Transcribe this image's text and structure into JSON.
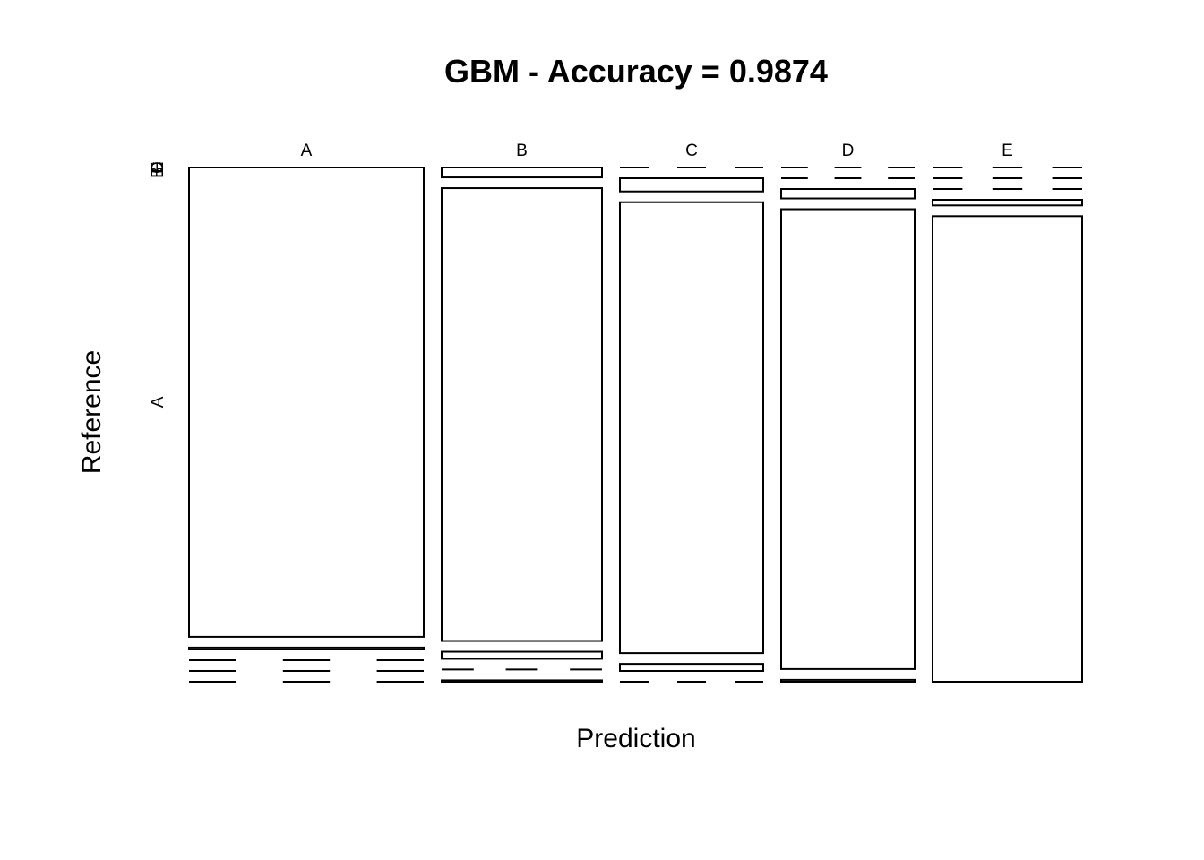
{
  "chart_data": {
    "type": "mosaic",
    "title": "GBM - Accuracy = 0.9874",
    "xlabel": "Prediction",
    "ylabel": "Reference",
    "prediction_levels": [
      "A",
      "B",
      "C",
      "D",
      "E"
    ],
    "reference_levels": [
      "A",
      "B",
      "C",
      "D",
      "E"
    ],
    "y_tick_labels": [
      "A",
      "B",
      "C",
      "D",
      "E"
    ],
    "proportions": [
      [
        1.0,
        0.004,
        0.0,
        0.0,
        0.0
      ],
      [
        0.021,
        0.961,
        0.015,
        0.0,
        0.003
      ],
      [
        0.0,
        0.028,
        0.957,
        0.015,
        0.0
      ],
      [
        0.0,
        0.0,
        0.02,
        0.976,
        0.004
      ],
      [
        0.0,
        0.0,
        0.0,
        0.012,
        0.988
      ]
    ],
    "grid": false,
    "legend": "none",
    "colors": {
      "tile_fill": "#ffffff",
      "stroke": "#000000",
      "background": "#ffffff"
    }
  }
}
